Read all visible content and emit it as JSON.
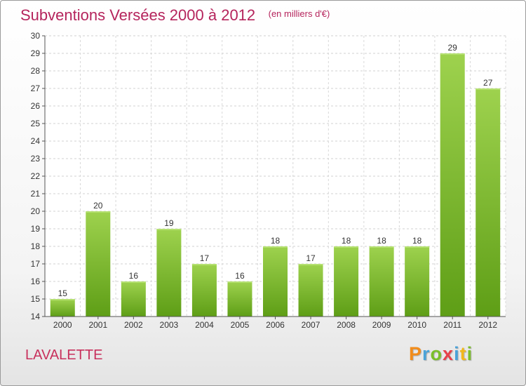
{
  "chart_data": {
    "type": "bar",
    "title": "Subventions Versées 2000 à 2012",
    "subtitle": "(en milliers d'€)",
    "categories": [
      "2000",
      "2001",
      "2002",
      "2003",
      "2004",
      "2005",
      "2006",
      "2007",
      "2008",
      "2009",
      "2010",
      "2011",
      "2012"
    ],
    "values": [
      15,
      20,
      16,
      19,
      17,
      16,
      18,
      17,
      18,
      18,
      18,
      29,
      27
    ],
    "ylim": [
      14,
      30
    ],
    "yticks": [
      14,
      15,
      16,
      17,
      18,
      19,
      20,
      21,
      22,
      23,
      24,
      25,
      26,
      27,
      28,
      29,
      30
    ],
    "grid": true,
    "xlabel": "",
    "ylabel": "",
    "colors": {
      "bar_top": "#9ed24e",
      "bar_bottom": "#5e9e16",
      "title": "#b5245c"
    }
  },
  "footer": {
    "commune": "LAVALETTE",
    "logo_text": "Proxiti",
    "logo_colors": [
      "#f28c1a",
      "#4aa2d8",
      "#7bbf2a",
      "#e8404a",
      "#4aa2d8",
      "#f2b81a",
      "#7bbf2a"
    ]
  }
}
